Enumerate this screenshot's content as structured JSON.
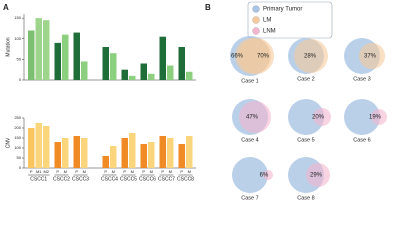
{
  "panel_labels": [
    "A",
    "B"
  ],
  "chart_data": [
    {
      "type": "grouped_bar",
      "ylabel": "Mutation",
      "ylim": [
        0,
        160
      ],
      "yticks": [
        0,
        50,
        100,
        150
      ],
      "groups": [
        {
          "values": [
            120,
            150,
            145
          ],
          "colors": [
            "#7dbf72",
            "#9fd48c",
            "#9fd48c"
          ]
        },
        {
          "values": [
            90,
            110
          ],
          "colors": [
            "#1f6e3a",
            "#8ccf7f"
          ]
        },
        {
          "values": [
            115,
            45
          ],
          "colors": [
            "#1f6e3a",
            "#8ccf7f"
          ]
        },
        {
          "values": [
            80,
            65
          ],
          "colors": [
            "#1f6e3a",
            "#8ccf7f"
          ]
        },
        {
          "values": [
            25,
            10
          ],
          "colors": [
            "#1f6e3a",
            "#8ccf7f"
          ]
        },
        {
          "values": [
            40,
            15
          ],
          "colors": [
            "#1f6e3a",
            "#8ccf7f"
          ]
        },
        {
          "values": [
            105,
            35
          ],
          "colors": [
            "#1f6e3a",
            "#8ccf7f"
          ]
        },
        {
          "values": [
            80,
            20
          ],
          "colors": [
            "#1f6e3a",
            "#8ccf7f"
          ]
        }
      ]
    },
    {
      "type": "grouped_bar",
      "ylabel": "CNV",
      "ylim": [
        0,
        250
      ],
      "yticks": [
        0,
        50,
        100,
        150,
        200,
        250
      ],
      "groups": [
        {
          "name": "CSCC1",
          "labels": [
            "P",
            "M1",
            "M2"
          ],
          "values": [
            200,
            225,
            210
          ],
          "colors": [
            "#f8c55e",
            "#fbd57c",
            "#fbd57c"
          ]
        },
        {
          "name": "CSCC2",
          "labels": [
            "P",
            "M"
          ],
          "values": [
            130,
            150
          ],
          "colors": [
            "#f08a24",
            "#fbd57c"
          ]
        },
        {
          "name": "CSCC3",
          "labels": [
            "P",
            "M"
          ],
          "values": [
            160,
            150
          ],
          "colors": [
            "#f08a24",
            "#fbd57c"
          ]
        },
        {
          "name": "CSCC4",
          "labels": [
            "P",
            "M"
          ],
          "values": [
            60,
            110
          ],
          "colors": [
            "#f08a24",
            "#fbd57c"
          ]
        },
        {
          "name": "CSCC5",
          "labels": [
            "P",
            "M"
          ],
          "values": [
            150,
            175
          ],
          "colors": [
            "#f08a24",
            "#fbd57c"
          ]
        },
        {
          "name": "CSCC6",
          "labels": [
            "P",
            "M"
          ],
          "values": [
            120,
            130
          ],
          "colors": [
            "#f08a24",
            "#fbd57c"
          ]
        },
        {
          "name": "CSCC7",
          "labels": [
            "P",
            "M"
          ],
          "values": [
            160,
            150
          ],
          "colors": [
            "#f08a24",
            "#fbd57c"
          ]
        },
        {
          "name": "CSCC8",
          "labels": [
            "P",
            "M"
          ],
          "values": [
            120,
            160
          ],
          "colors": [
            "#f08a24",
            "#fbd57c"
          ]
        }
      ]
    }
  ],
  "venn": {
    "legend": [
      {
        "name": "Primary Tumor",
        "color": "#a9c4e4"
      },
      {
        "name": "LM",
        "color": "#f5c99b"
      },
      {
        "name": "LNM",
        "color": "#f4b6cf"
      }
    ],
    "cases": [
      {
        "label": "Case 1",
        "overlaps": [
          "66%",
          "70%"
        ]
      },
      {
        "label": "Case 2",
        "overlaps": [
          "28%"
        ]
      },
      {
        "label": "Case 3",
        "overlaps": [
          "37%"
        ]
      },
      {
        "label": "Case 4",
        "overlaps": [
          "47%"
        ]
      },
      {
        "label": "Case 5",
        "overlaps": [
          "20%"
        ]
      },
      {
        "label": "Case 6",
        "overlaps": [
          "19%"
        ]
      },
      {
        "label": "Case 7",
        "overlaps": [
          "6%"
        ]
      },
      {
        "label": "Case 8",
        "overlaps": [
          "29%"
        ]
      }
    ]
  }
}
